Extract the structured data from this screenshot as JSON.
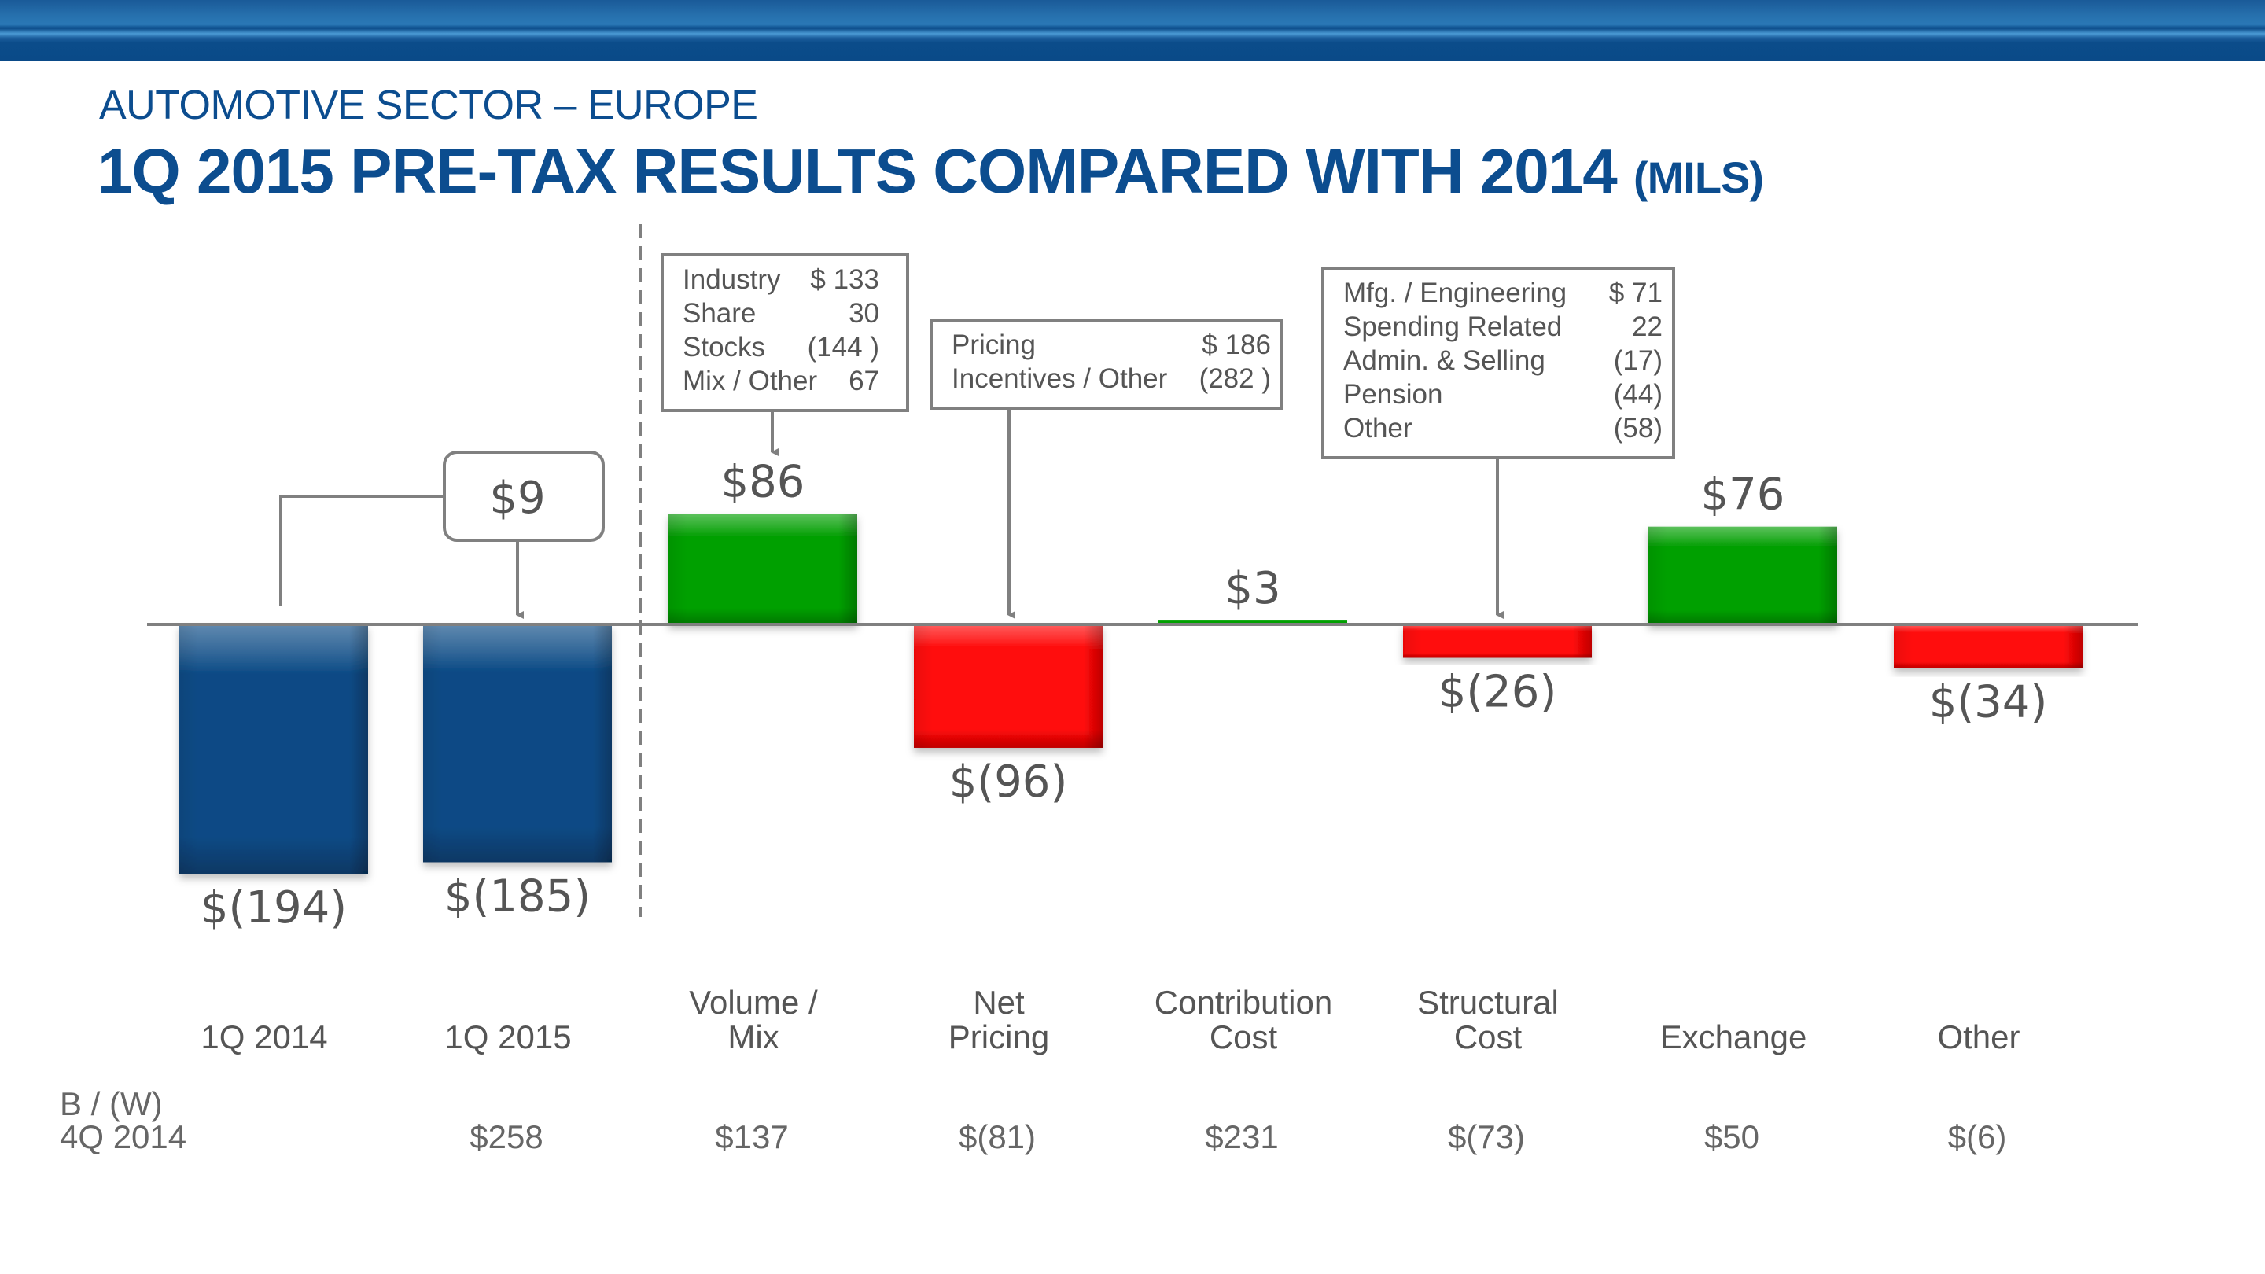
{
  "header": {
    "subtitle": "AUTOMOTIVE SECTOR – EUROPE",
    "title": "1Q 2015 PRE-TAX RESULTS COMPARED WITH 2014",
    "units": "(MILS)"
  },
  "colors": {
    "brand_blue": "#0c4d8f",
    "bar_blue": "#0b4a85",
    "bar_green": "#05a005",
    "bar_red": "#ff0707",
    "text_gray": "#555555",
    "line_gray": "#808080"
  },
  "chart_data": {
    "type": "bar",
    "subtype": "waterfall-variance",
    "title": "1Q 2015 PRE-TAX RESULTS COMPARED WITH 2014 (MILS)",
    "xlabel": "",
    "ylabel": "",
    "ylim": [
      -200,
      100
    ],
    "grid": false,
    "categories": [
      [
        "1Q 2014"
      ],
      [
        "1Q 2015"
      ],
      [
        "Volume /",
        "Mix"
      ],
      [
        "Net",
        "Pricing"
      ],
      [
        "Contribution",
        "Cost"
      ],
      [
        "Structural",
        "Cost"
      ],
      [
        "Exchange"
      ],
      [
        "Other"
      ]
    ],
    "values": [
      -194,
      -185,
      86,
      -96,
      3,
      -26,
      76,
      -34
    ],
    "value_labels": [
      "$(194)",
      "$(185)",
      "$86",
      "$(96)",
      "$3",
      "$(26)",
      "$76",
      "$(34)"
    ],
    "bar_kinds": [
      "total",
      "total",
      "positive",
      "negative",
      "positive",
      "negative",
      "positive",
      "negative"
    ],
    "change_annotation": {
      "label": "$9",
      "value": 9,
      "from": "1Q 2014",
      "to": "1Q 2015"
    },
    "comparison_row": {
      "label_line1": "B / (W)",
      "label_line2": "4Q 2014",
      "values": [
        "",
        "$258",
        "$137",
        "$(81)",
        "$231",
        "$(73)",
        "$50",
        "$(6)"
      ]
    },
    "detail_boxes": [
      {
        "category": "Volume / Mix",
        "rows": [
          {
            "label": "Industry",
            "value": "$ 133"
          },
          {
            "label": "Share",
            "value": "30"
          },
          {
            "label": "Stocks",
            "value": "(144 )"
          },
          {
            "label": "Mix / Other",
            "value": "67"
          }
        ]
      },
      {
        "category": "Net Pricing",
        "rows": [
          {
            "label": "Pricing",
            "value": "$ 186"
          },
          {
            "label": "Incentives / Other",
            "value": "(282 )"
          }
        ]
      },
      {
        "category": "Structural Cost",
        "rows": [
          {
            "label": "Mfg. / Engineering",
            "value": "$ 71"
          },
          {
            "label": "Spending Related",
            "value": "22"
          },
          {
            "label": "Admin. & Selling",
            "value": "(17)"
          },
          {
            "label": "Pension",
            "value": "(44)"
          },
          {
            "label": "Other",
            "value": "(58)"
          }
        ]
      }
    ]
  }
}
